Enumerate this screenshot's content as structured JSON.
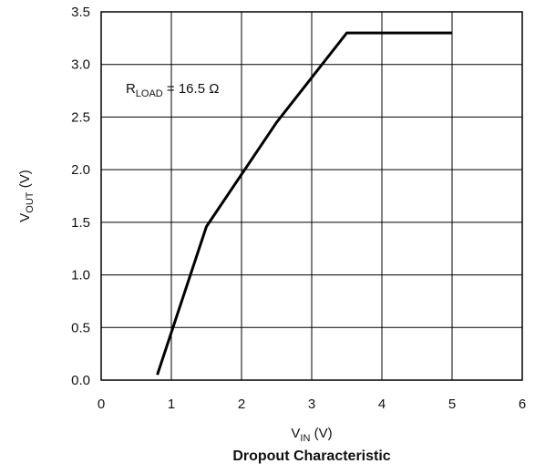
{
  "chart_data": {
    "type": "line",
    "title": "Dropout Characteristic",
    "xlabel": {
      "main": "V",
      "sub": "IN",
      "unit": " (V)"
    },
    "ylabel": {
      "main": "V",
      "sub": "OUT",
      "unit": " (V)"
    },
    "xlim": [
      0,
      6
    ],
    "ylim": [
      0,
      3.5
    ],
    "x_ticks": [
      "0",
      "1",
      "2",
      "3",
      "4",
      "5",
      "6"
    ],
    "y_ticks": [
      "0.0",
      "0.5",
      "1.0",
      "1.5",
      "2.0",
      "2.5",
      "3.0",
      "3.5"
    ],
    "grid": true,
    "annotation": {
      "main": "R",
      "sub": "LOAD",
      "rest": " = 16.5 Ω",
      "x": 0.35,
      "y": 2.73
    },
    "series": [
      {
        "color": "#000000",
        "x": [
          0.8,
          1.5,
          2.5,
          3.5,
          5.0
        ],
        "y": [
          0.05,
          1.46,
          2.45,
          3.3,
          3.3
        ]
      }
    ]
  }
}
